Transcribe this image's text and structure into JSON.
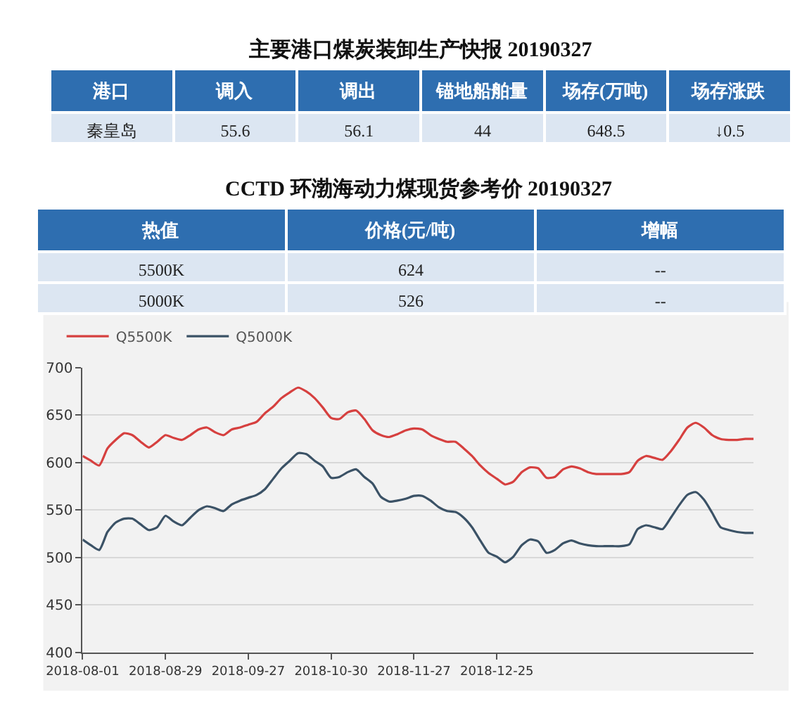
{
  "chart_data": [
    {
      "type": "other",
      "title": "主要港口煤炭装卸生产快报 20190327",
      "categories": [
        "港口",
        "调入",
        "调出",
        "锚地船舶量",
        "场存(万吨)",
        "场存涨跌"
      ],
      "cell_labels": [
        [
          "秦皇岛",
          "55.6",
          "56.1",
          "44",
          "648.5",
          "↓0.5"
        ]
      ]
    },
    {
      "type": "other",
      "title": "CCTD 环渤海动力煤现货参考价 20190327",
      "categories": [
        "热值",
        "价格(元/吨)",
        "增幅"
      ],
      "cell_labels": [
        [
          "5500K",
          "624",
          "--"
        ],
        [
          "5000K",
          "526",
          "--"
        ]
      ]
    },
    {
      "type": "line",
      "categories": [
        "2018-08-01",
        null,
        null,
        null,
        null,
        null,
        null,
        null,
        null,
        null,
        "2018-08-29",
        null,
        null,
        null,
        null,
        null,
        null,
        null,
        null,
        null,
        "2018-09-27",
        null,
        null,
        null,
        null,
        null,
        null,
        null,
        null,
        null,
        "2018-10-30",
        null,
        null,
        null,
        null,
        null,
        null,
        null,
        null,
        null,
        "2018-11-27",
        null,
        null,
        null,
        null,
        null,
        null,
        null,
        null,
        null,
        "2018-12-25",
        null,
        null,
        null,
        null,
        null,
        null,
        null,
        null,
        null,
        null,
        null,
        null,
        null,
        null,
        null,
        null,
        null,
        null,
        null,
        null,
        null,
        null,
        null,
        null,
        null,
        null,
        null,
        null,
        null,
        null,
        null
      ],
      "series": [
        {
          "name": "Q5500K",
          "color": "#d6403f",
          "values": [
            607,
            602,
            597,
            615,
            624,
            631,
            629,
            622,
            616,
            622,
            629,
            626,
            624,
            629,
            635,
            637,
            632,
            629,
            635,
            637,
            640,
            643,
            652,
            659,
            668,
            674,
            679,
            675,
            668,
            658,
            647,
            646,
            653,
            655,
            646,
            634,
            629,
            627,
            630,
            634,
            636,
            635,
            629,
            625,
            622,
            622,
            615,
            607,
            597,
            589,
            583,
            577,
            580,
            590,
            595,
            594,
            584,
            585,
            593,
            596,
            594,
            590,
            588,
            588,
            588,
            588,
            590,
            602,
            607,
            605,
            603,
            612,
            624,
            637,
            642,
            637,
            629,
            625,
            624,
            624,
            625,
            625
          ]
        },
        {
          "name": "Q5000K",
          "color": "#3b5266",
          "values": [
            519,
            513,
            508,
            527,
            537,
            541,
            541,
            535,
            529,
            532,
            544,
            538,
            534,
            542,
            550,
            554,
            552,
            549,
            556,
            560,
            563,
            566,
            572,
            583,
            594,
            602,
            610,
            609,
            602,
            596,
            584,
            585,
            590,
            593,
            585,
            578,
            564,
            559,
            560,
            562,
            565,
            565,
            560,
            553,
            549,
            548,
            542,
            532,
            518,
            505,
            501,
            495,
            501,
            513,
            519,
            517,
            505,
            508,
            515,
            518,
            515,
            513,
            512,
            512,
            512,
            512,
            514,
            530,
            534,
            532,
            530,
            542,
            555,
            566,
            569,
            561,
            547,
            532,
            529,
            527,
            526,
            526
          ]
        }
      ],
      "ylim": [
        400,
        700
      ],
      "yticks": [
        400,
        450,
        500,
        550,
        600,
        650,
        700
      ],
      "grid": "y",
      "legend": "top left",
      "line_style": "solid"
    }
  ]
}
